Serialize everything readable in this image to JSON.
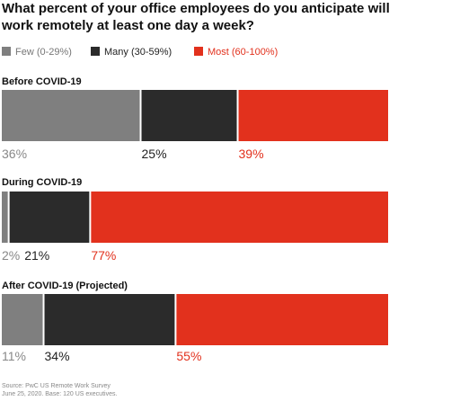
{
  "chart_data": {
    "type": "bar",
    "stacked": true,
    "orientation": "horizontal",
    "title_lines": [
      "What percent of your office employees do you anticipate will",
      "work remotely at least one day a week?"
    ],
    "legend_position": "top-left",
    "series": [
      {
        "name": "Few (0-29%)",
        "color": "#7f7f7f",
        "label_color": "#888888"
      },
      {
        "name": "Many (30-59%)",
        "color": "#2b2b2b",
        "label_color": "#222222"
      },
      {
        "name": "Most (60-100%)",
        "color": "#e2311d",
        "label_color": "#e2311d"
      }
    ],
    "groups": [
      {
        "label": "Before COVID-19",
        "values": [
          36,
          25,
          39
        ],
        "value_labels": [
          "36%",
          "25%",
          "39%"
        ]
      },
      {
        "label": "During COVID-19",
        "values": [
          2,
          21,
          77
        ],
        "value_labels": [
          "2%",
          "21%",
          "77%"
        ]
      },
      {
        "label": "After COVID-19 (Projected)",
        "values": [
          11,
          34,
          55
        ],
        "value_labels": [
          "11%",
          "34%",
          "55%"
        ]
      }
    ],
    "source_lines": [
      "Source: PwC US Remote Work Survey",
      "June 25, 2020. Base: 120 US executives."
    ]
  }
}
